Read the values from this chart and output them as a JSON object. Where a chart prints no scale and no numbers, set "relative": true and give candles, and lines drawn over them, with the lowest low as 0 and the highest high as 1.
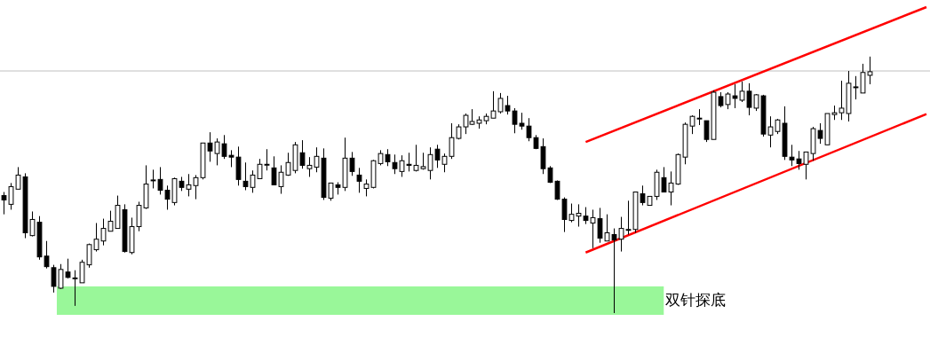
{
  "chart_data": {
    "type": "candlestick",
    "relative": true,
    "color": "#000000",
    "categories": [
      null,
      null,
      null,
      null,
      null,
      null,
      null,
      null,
      null,
      null,
      null,
      null,
      null,
      null,
      null,
      null,
      null,
      null,
      null,
      null,
      null,
      null,
      null,
      null,
      null,
      null,
      null,
      null,
      null,
      null,
      null,
      null,
      null,
      null,
      null,
      null,
      null,
      null,
      null,
      null,
      null,
      null,
      null,
      null,
      null,
      null,
      null,
      null,
      null,
      null,
      null,
      null,
      null,
      null,
      null,
      null,
      null,
      null,
      null,
      null,
      null,
      null,
      null,
      null,
      null,
      null,
      null,
      null,
      null,
      null,
      null,
      null,
      null,
      null,
      null,
      null,
      null,
      null,
      null,
      null,
      null,
      null,
      null,
      null,
      null,
      null,
      null,
      null,
      null,
      null,
      null,
      null,
      null,
      null,
      null,
      null,
      null,
      null,
      null,
      null,
      null,
      null,
      null,
      null,
      null,
      null,
      null,
      null,
      null,
      null,
      null,
      null,
      null,
      null,
      null,
      null,
      null,
      null,
      null,
      null,
      null,
      null,
      null,
      null,
      null,
      null,
      null,
      null,
      null,
      null,
      null
    ],
    "ohlc": [
      [
        0.458,
        0.472,
        0.385,
        0.441
      ],
      [
        0.424,
        0.507,
        0.403,
        0.493
      ],
      [
        0.483,
        0.569,
        0.483,
        0.538
      ],
      [
        0.531,
        0.545,
        0.292,
        0.313
      ],
      [
        0.302,
        0.396,
        0.299,
        0.365
      ],
      [
        0.354,
        0.378,
        0.208,
        0.219
      ],
      [
        0.222,
        0.281,
        0.174,
        0.181
      ],
      [
        0.177,
        0.188,
        0.08,
        0.104
      ],
      [
        0.097,
        0.191,
        0.094,
        0.17
      ],
      [
        0.16,
        0.212,
        0.135,
        0.139
      ],
      [
        0.137,
        0.167,
        0.028,
        0.137
      ],
      [
        0.118,
        0.208,
        0.118,
        0.198
      ],
      [
        0.188,
        0.271,
        0.177,
        0.267
      ],
      [
        0.247,
        0.351,
        0.24,
        0.288
      ],
      [
        0.281,
        0.368,
        0.264,
        0.33
      ],
      [
        0.319,
        0.399,
        0.319,
        0.358
      ],
      [
        0.33,
        0.458,
        0.33,
        0.42
      ],
      [
        0.403,
        0.424,
        0.236,
        0.24
      ],
      [
        0.236,
        0.372,
        0.229,
        0.337
      ],
      [
        0.337,
        0.434,
        0.319,
        0.42
      ],
      [
        0.41,
        0.576,
        0.406,
        0.503
      ],
      [
        0.519,
        0.559,
        0.486,
        0.519
      ],
      [
        0.521,
        0.569,
        0.462,
        0.479
      ],
      [
        0.479,
        0.497,
        0.403,
        0.444
      ],
      [
        0.431,
        0.528,
        0.42,
        0.524
      ],
      [
        0.514,
        0.531,
        0.476,
        0.49
      ],
      [
        0.483,
        0.542,
        0.455,
        0.5
      ],
      [
        0.497,
        0.538,
        0.444,
        0.528
      ],
      [
        0.528,
        0.663,
        0.521,
        0.663
      ],
      [
        0.663,
        0.705,
        0.59,
        0.632
      ],
      [
        0.622,
        0.681,
        0.576,
        0.667
      ],
      [
        0.66,
        0.694,
        0.601,
        0.611
      ],
      [
        0.615,
        0.635,
        0.569,
        0.608
      ],
      [
        0.608,
        0.649,
        0.497,
        0.521
      ],
      [
        0.514,
        0.587,
        0.479,
        0.493
      ],
      [
        0.49,
        0.556,
        0.469,
        0.538
      ],
      [
        0.524,
        0.601,
        0.524,
        0.58
      ],
      [
        0.58,
        0.639,
        0.556,
        0.58
      ],
      [
        0.566,
        0.611,
        0.5,
        0.5
      ],
      [
        0.493,
        0.576,
        0.465,
        0.549
      ],
      [
        0.538,
        0.625,
        0.535,
        0.587
      ],
      [
        0.556,
        0.667,
        0.545,
        0.656
      ],
      [
        0.625,
        0.674,
        0.563,
        0.576
      ],
      [
        0.563,
        0.608,
        0.531,
        0.576
      ],
      [
        0.569,
        0.646,
        0.549,
        0.611
      ],
      [
        0.604,
        0.642,
        0.441,
        0.451
      ],
      [
        0.448,
        0.507,
        0.438,
        0.507
      ],
      [
        0.5,
        0.51,
        0.462,
        0.49
      ],
      [
        0.49,
        0.684,
        0.476,
        0.604
      ],
      [
        0.604,
        0.628,
        0.535,
        0.552
      ],
      [
        0.538,
        0.566,
        0.469,
        0.514
      ],
      [
        0.486,
        0.521,
        0.455,
        0.503
      ],
      [
        0.49,
        0.597,
        0.486,
        0.594
      ],
      [
        0.583,
        0.635,
        0.576,
        0.622
      ],
      [
        0.618,
        0.639,
        0.573,
        0.59
      ],
      [
        0.587,
        0.618,
        0.542,
        0.563
      ],
      [
        0.552,
        0.615,
        0.531,
        0.594
      ],
      [
        0.58,
        0.625,
        0.552,
        0.576
      ],
      [
        0.556,
        0.656,
        0.552,
        0.576
      ],
      [
        0.563,
        0.625,
        0.559,
        0.571
      ],
      [
        0.556,
        0.646,
        0.521,
        0.618
      ],
      [
        0.639,
        0.656,
        0.566,
        0.597
      ],
      [
        0.58,
        0.622,
        0.549,
        0.611
      ],
      [
        0.611,
        0.74,
        0.601,
        0.684
      ],
      [
        0.681,
        0.736,
        0.677,
        0.726
      ],
      [
        0.726,
        0.778,
        0.698,
        0.771
      ],
      [
        0.736,
        0.795,
        0.733,
        0.747
      ],
      [
        0.74,
        0.767,
        0.719,
        0.753
      ],
      [
        0.75,
        0.778,
        0.736,
        0.767
      ],
      [
        0.76,
        0.865,
        0.76,
        0.788
      ],
      [
        0.785,
        0.858,
        0.778,
        0.837
      ],
      [
        0.809,
        0.847,
        0.774,
        0.788
      ],
      [
        0.788,
        0.799,
        0.701,
        0.736
      ],
      [
        0.74,
        0.781,
        0.715,
        0.729
      ],
      [
        0.729,
        0.76,
        0.67,
        0.684
      ],
      [
        0.684,
        0.694,
        0.639,
        0.642
      ],
      [
        0.649,
        0.681,
        0.542,
        0.563
      ],
      [
        0.566,
        0.573,
        0.507,
        0.51
      ],
      [
        0.514,
        0.517,
        0.441,
        0.444
      ],
      [
        0.444,
        0.451,
        0.316,
        0.365
      ],
      [
        0.361,
        0.427,
        0.354,
        0.385
      ],
      [
        0.378,
        0.424,
        0.337,
        0.389
      ],
      [
        0.378,
        0.413,
        0.347,
        0.361
      ],
      [
        0.351,
        0.403,
        0.253,
        0.372
      ],
      [
        0.368,
        0.41,
        0.274,
        0.292
      ],
      [
        0.281,
        0.385,
        0.281,
        0.313
      ],
      [
        0.306,
        0.33,
        0,
        0.285
      ],
      [
        0.288,
        0.375,
        0.24,
        0.33
      ],
      [
        0.326,
        0.438,
        0.306,
        0.326
      ],
      [
        0.326,
        0.472,
        0.313,
        0.472
      ],
      [
        0.465,
        0.497,
        0.42,
        0.431
      ],
      [
        0.42,
        0.455,
        0.42,
        0.455
      ],
      [
        0.455,
        0.559,
        0.441,
        0.549
      ],
      [
        0.528,
        0.569,
        0.472,
        0.472
      ],
      [
        0.472,
        0.552,
        0.42,
        0.507
      ],
      [
        0.503,
        0.622,
        0.5,
        0.618
      ],
      [
        0.608,
        0.743,
        0.58,
        0.736
      ],
      [
        0.729,
        0.771,
        0.698,
        0.767
      ],
      [
        0.76,
        0.795,
        0.733,
        0.76
      ],
      [
        0.75,
        0.75,
        0.667,
        0.677
      ],
      [
        0.677,
        0.868,
        0.677,
        0.861
      ],
      [
        0.844,
        0.861,
        0.802,
        0.809
      ],
      [
        0.813,
        0.861,
        0.795,
        0.854
      ],
      [
        0.847,
        0.892,
        0.799,
        0.837
      ],
      [
        0.83,
        0.903,
        0.823,
        0.865
      ],
      [
        0.865,
        0.896,
        0.771,
        0.802
      ],
      [
        0.799,
        0.854,
        0.788,
        0.851
      ],
      [
        0.847,
        0.851,
        0.688,
        0.698
      ],
      [
        0.694,
        0.767,
        0.646,
        0.726
      ],
      [
        0.708,
        0.757,
        0.698,
        0.753
      ],
      [
        0.74,
        0.806,
        0.597,
        0.611
      ],
      [
        0.608,
        0.656,
        0.573,
        0.597
      ],
      [
        0.601,
        0.632,
        0.559,
        0.583
      ],
      [
        0.58,
        0.628,
        0.521,
        0.628
      ],
      [
        0.622,
        0.726,
        0.594,
        0.719
      ],
      [
        0.712,
        0.74,
        0.66,
        0.681
      ],
      [
        0.656,
        0.778,
        0.656,
        0.778
      ],
      [
        0.774,
        0.809,
        0.753,
        0.781
      ],
      [
        0.781,
        0.906,
        0.753,
        0.799
      ],
      [
        0.778,
        0.944,
        0.747,
        0.896
      ],
      [
        0.882,
        0.924,
        0.833,
        0.882
      ],
      [
        0.858,
        0.972,
        0.858,
        0.938
      ],
      [
        0.927,
        1,
        0.892,
        0.941
      ],
      null,
      null,
      null,
      null,
      null,
      null,
      null,
      null
    ],
    "series": [
      {
        "type": "line",
        "color": "#ff0000",
        "values": [
          null,
          null,
          null,
          null,
          null,
          null,
          null,
          null,
          null,
          null,
          null,
          null,
          null,
          null,
          null,
          null,
          null,
          null,
          null,
          null,
          null,
          null,
          null,
          null,
          null,
          null,
          null,
          null,
          null,
          null,
          null,
          null,
          null,
          null,
          null,
          null,
          null,
          null,
          null,
          null,
          null,
          null,
          null,
          null,
          null,
          null,
          null,
          null,
          null,
          null,
          null,
          null,
          null,
          null,
          null,
          null,
          null,
          null,
          null,
          null,
          null,
          null,
          null,
          null,
          null,
          null,
          null,
          null,
          null,
          null,
          null,
          null,
          null,
          null,
          null,
          null,
          null,
          null,
          null,
          null,
          null,
          null,
          0.667,
          null,
          null,
          null,
          null,
          null,
          null,
          null,
          null,
          null,
          null,
          null,
          null,
          null,
          null,
          null,
          null,
          null,
          null,
          null,
          null,
          null,
          null,
          null,
          null,
          null,
          null,
          null,
          null,
          null,
          null,
          null,
          null,
          null,
          null,
          null,
          null,
          null,
          null,
          null,
          null,
          null,
          null,
          null,
          null,
          null,
          null,
          null,
          1.193
        ]
      },
      {
        "type": "line",
        "color": "#ff0000",
        "values": [
          null,
          null,
          null,
          null,
          null,
          null,
          null,
          null,
          null,
          null,
          null,
          null,
          null,
          null,
          null,
          null,
          null,
          null,
          null,
          null,
          null,
          null,
          null,
          null,
          null,
          null,
          null,
          null,
          null,
          null,
          null,
          null,
          null,
          null,
          null,
          null,
          null,
          null,
          null,
          null,
          null,
          null,
          null,
          null,
          null,
          null,
          null,
          null,
          null,
          null,
          null,
          null,
          null,
          null,
          null,
          null,
          null,
          null,
          null,
          null,
          null,
          null,
          null,
          null,
          null,
          null,
          null,
          null,
          null,
          null,
          null,
          null,
          null,
          null,
          null,
          null,
          null,
          null,
          null,
          null,
          null,
          null,
          0.236,
          null,
          null,
          null,
          null,
          null,
          null,
          null,
          null,
          null,
          null,
          null,
          null,
          null,
          null,
          null,
          null,
          null,
          null,
          null,
          null,
          null,
          null,
          null,
          null,
          null,
          null,
          null,
          null,
          null,
          null,
          null,
          null,
          null,
          null,
          null,
          null,
          null,
          null,
          null,
          null,
          null,
          null,
          null,
          null,
          null,
          null,
          null,
          0.776
        ]
      }
    ],
    "ref_lines": [
      {
        "axis": "y",
        "value": 0.944,
        "color": "#c0c0c0"
      }
    ],
    "bands": [
      {
        "axis": "y",
        "from": 0,
        "to": 0.104,
        "label": "双针探底",
        "color": "#99f799"
      }
    ]
  }
}
